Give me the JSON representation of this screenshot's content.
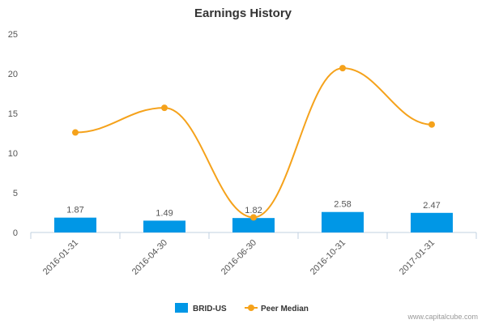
{
  "chart_data": {
    "type": "bar",
    "title": "Earnings History",
    "categories": [
      "2016-01-31",
      "2016-04-30",
      "2016-06-30",
      "2016-10-31",
      "2017-01-31"
    ],
    "ylim": [
      0,
      25
    ],
    "yticks": [
      0,
      5,
      10,
      15,
      20,
      25
    ],
    "grid": false,
    "legend_position": "bottom",
    "series": [
      {
        "name": "BRID-US",
        "type": "bar",
        "color": "#0097e6",
        "values": [
          1.87,
          1.49,
          1.82,
          2.58,
          2.47
        ],
        "labels": [
          "1.87",
          "1.49",
          "1.82",
          "2.58",
          "2.47"
        ]
      },
      {
        "name": "Peer Median",
        "type": "line",
        "color": "#f5a21b",
        "values": [
          12.6,
          15.7,
          1.9,
          20.7,
          13.6
        ]
      }
    ]
  },
  "footer": {
    "credit": "www.capitalcube.com"
  }
}
